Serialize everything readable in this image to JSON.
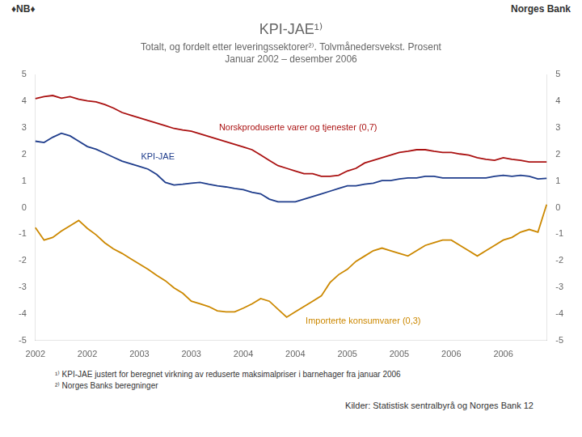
{
  "chart_data": {
    "type": "line",
    "title": "KPI-JAE¹⁾",
    "subtitle": [
      "Totalt, og fordelt etter leveringssektorer²⁾. Tolvmånedersvekst. Prosent",
      "Januar 2002 – desember 2006"
    ],
    "annotations": [
      "♦NB♦",
      "Norges Bank",
      "¹⁾ KPI-JAE justert for beregnet virkning av reduserte maksimalpriser i barnehager fra januar 2006",
      "²⁾ Norges Banks beregninger",
      "Kilder: Statistisk sentralbyrå og Norges Bank  12"
    ],
    "categories": [
      "2002",
      null,
      null,
      null,
      null,
      null,
      "2002",
      null,
      null,
      null,
      null,
      null,
      "2003",
      null,
      null,
      null,
      null,
      null,
      "2003",
      null,
      null,
      null,
      null,
      null,
      "2004",
      null,
      null,
      null,
      null,
      null,
      "2004",
      null,
      null,
      null,
      null,
      null,
      "2005",
      null,
      null,
      null,
      null,
      null,
      "2005",
      null,
      null,
      null,
      null,
      null,
      "2006",
      null,
      null,
      null,
      null,
      null,
      "2006",
      null,
      null,
      null,
      null,
      null
    ],
    "series": [
      {
        "name": "Norskproduserte varer og tjenester (0,7)",
        "color": "#aa1111",
        "values": [
          4.1,
          4.18,
          4.22,
          4.12,
          4.18,
          4.08,
          4.02,
          3.98,
          3.88,
          3.75,
          3.58,
          3.48,
          3.38,
          3.28,
          3.18,
          3.08,
          2.98,
          2.92,
          2.88,
          2.78,
          2.68,
          2.58,
          2.48,
          2.38,
          2.28,
          2.18,
          1.98,
          1.78,
          1.58,
          1.48,
          1.38,
          1.28,
          1.28,
          1.18,
          1.18,
          1.22,
          1.38,
          1.48,
          1.68,
          1.78,
          1.88,
          1.98,
          2.08,
          2.12,
          2.18,
          2.18,
          2.12,
          2.08,
          2.08,
          2.02,
          1.98,
          1.88,
          1.82,
          1.78,
          1.88,
          1.82,
          1.78,
          1.72,
          1.72,
          1.72
        ]
      },
      {
        "name": "KPI-JAE",
        "color": "#1f3d8c",
        "values": [
          2.5,
          2.45,
          2.65,
          2.8,
          2.7,
          2.5,
          2.3,
          2.2,
          2.05,
          1.9,
          1.75,
          1.65,
          1.55,
          1.45,
          1.25,
          0.95,
          0.85,
          0.88,
          0.92,
          0.95,
          0.88,
          0.82,
          0.78,
          0.72,
          0.68,
          0.58,
          0.52,
          0.32,
          0.22,
          0.22,
          0.22,
          0.32,
          0.42,
          0.52,
          0.62,
          0.72,
          0.82,
          0.82,
          0.88,
          0.92,
          1.02,
          1.02,
          1.08,
          1.12,
          1.12,
          1.18,
          1.18,
          1.12,
          1.12,
          1.12,
          1.12,
          1.12,
          1.12,
          1.18,
          1.22,
          1.18,
          1.22,
          1.18,
          1.08,
          1.1
        ]
      },
      {
        "name": "Importerte konsumvarer (0,3)",
        "color": "#cc8800",
        "values": [
          -0.75,
          -1.22,
          -1.12,
          -0.88,
          -0.68,
          -0.48,
          -0.78,
          -1.02,
          -1.32,
          -1.55,
          -1.72,
          -1.92,
          -2.12,
          -2.32,
          -2.55,
          -2.75,
          -3.02,
          -3.22,
          -3.52,
          -3.62,
          -3.72,
          -3.88,
          -3.92,
          -3.92,
          -3.78,
          -3.62,
          -3.42,
          -3.52,
          -3.82,
          -4.12,
          -3.92,
          -3.72,
          -3.52,
          -3.32,
          -2.82,
          -2.52,
          -2.32,
          -2.02,
          -1.82,
          -1.62,
          -1.52,
          -1.62,
          -1.72,
          -1.82,
          -1.62,
          -1.42,
          -1.32,
          -1.22,
          -1.22,
          -1.42,
          -1.62,
          -1.82,
          -1.62,
          -1.42,
          -1.22,
          -1.12,
          -0.92,
          -0.82,
          -0.92,
          0.12
        ]
      }
    ],
    "ylim": [
      -5,
      5
    ],
    "yticks": [
      -5,
      -4,
      -3,
      -2,
      -1,
      0,
      1,
      2,
      3,
      4,
      5
    ],
    "y2lim": [
      -5,
      5
    ],
    "y2ticks": [
      -5,
      -4,
      -3,
      -2,
      -1,
      0,
      1,
      2,
      3,
      4,
      5
    ],
    "grid": false
  }
}
